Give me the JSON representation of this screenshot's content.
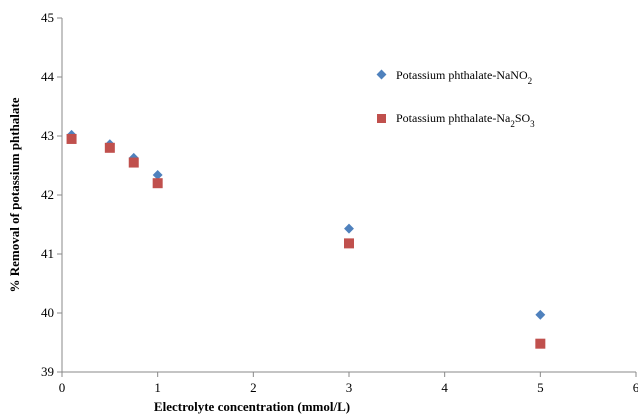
{
  "chart_data": {
    "type": "scatter",
    "xlabel": "Electrolyte concentration (mmol/L)",
    "ylabel": "% Removal of potassium phthalate",
    "xlim": [
      0,
      6
    ],
    "ylim": [
      39,
      45
    ],
    "xticks": [
      "0",
      "1",
      "2",
      "3",
      "4",
      "5",
      "6"
    ],
    "yticks": [
      "39",
      "40",
      "41",
      "42",
      "43",
      "44",
      "45"
    ],
    "grid": false,
    "legend_position": "top-right",
    "series": [
      {
        "name": "Potassium phthalate-NaNO2",
        "label_main": "Potassium phthalate-NaNO",
        "label_sub": "2",
        "label_tail": "",
        "marker": "diamond",
        "color": "#4F81BD",
        "points": [
          [
            0.1,
            43.02
          ],
          [
            0.5,
            42.86
          ],
          [
            0.75,
            42.63
          ],
          [
            1.0,
            42.34
          ],
          [
            3.0,
            41.43
          ],
          [
            5.0,
            39.97
          ]
        ]
      },
      {
        "name": "Potassium phthalate-Na2SO3",
        "label_main": "Potassium phthalate-Na",
        "label_sub": "2",
        "label_tail": "SO",
        "label_sub2": "3",
        "marker": "square",
        "color": "#C0504D",
        "points": [
          [
            0.1,
            42.95
          ],
          [
            0.5,
            42.8
          ],
          [
            0.75,
            42.55
          ],
          [
            1.0,
            42.2
          ],
          [
            3.0,
            41.18
          ],
          [
            5.0,
            39.48
          ]
        ]
      }
    ]
  }
}
